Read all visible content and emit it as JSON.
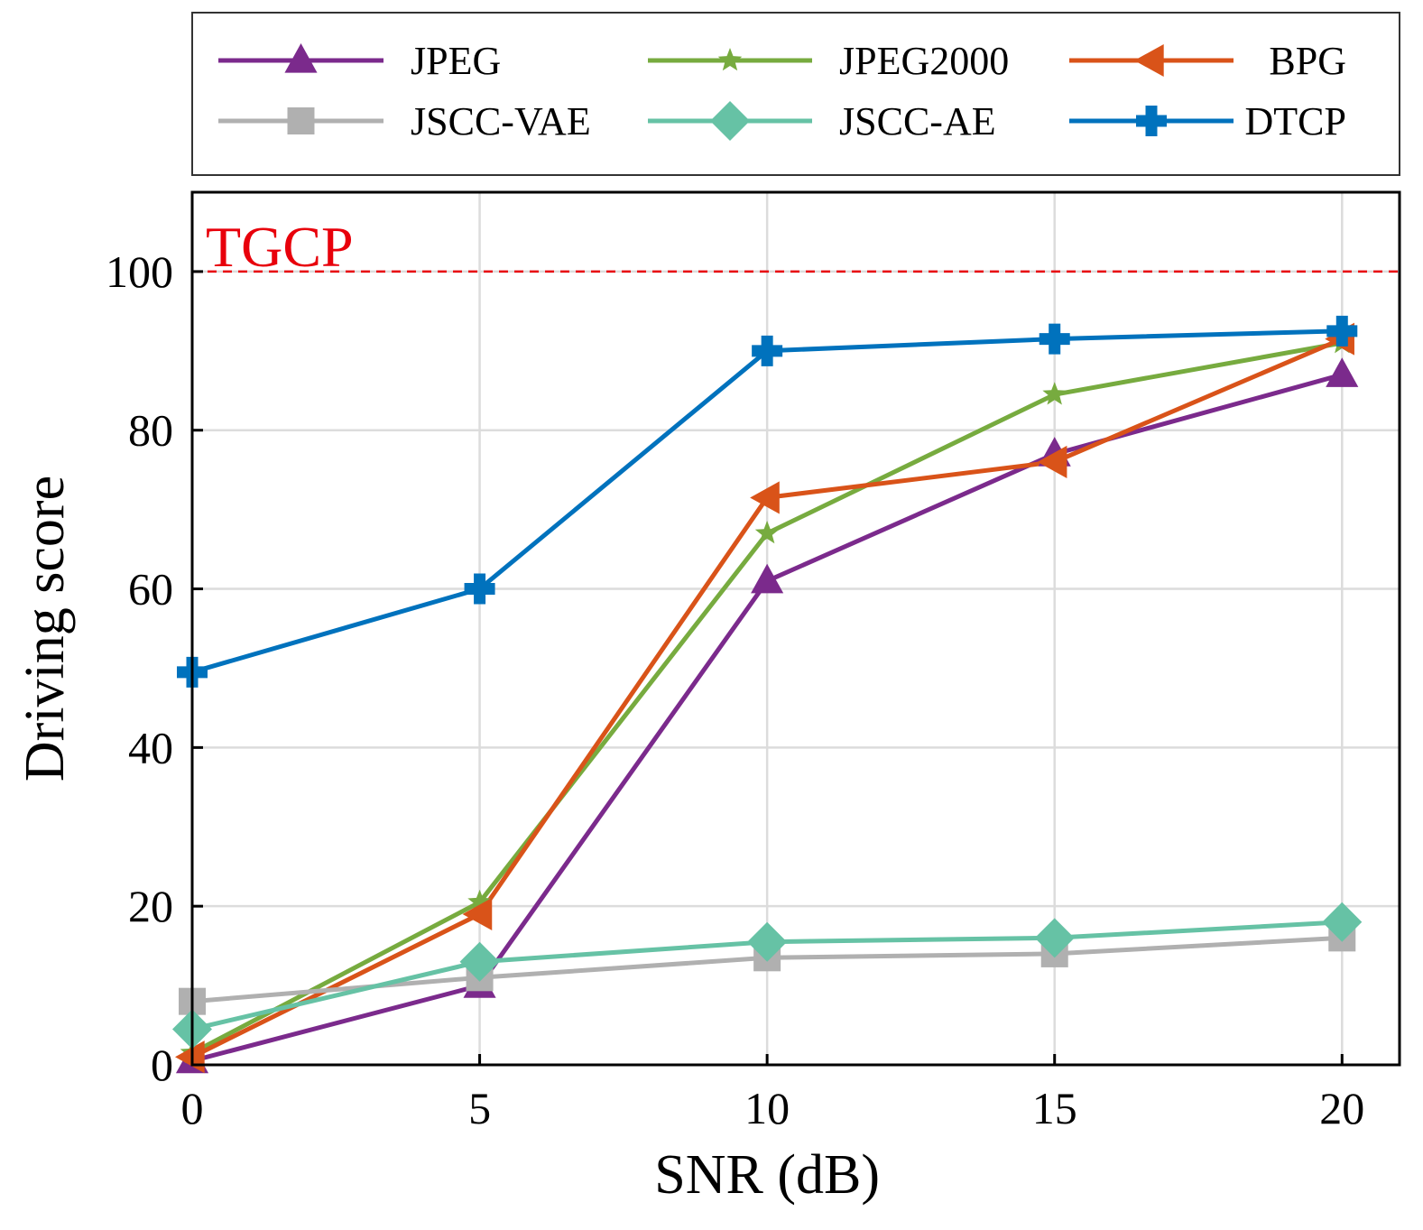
{
  "chart_data": {
    "type": "line",
    "xlabel": "SNR (dB)",
    "ylabel": "Driving score",
    "xlim": [
      0,
      21
    ],
    "ylim": [
      0,
      110
    ],
    "xticks": [
      0,
      5,
      10,
      15,
      20
    ],
    "yticks": [
      0,
      20,
      40,
      60,
      80,
      100
    ],
    "grid": true,
    "legend_position": "top (outside, above plot)",
    "reference_line": {
      "label": "TGCP",
      "y": 100,
      "color": "#e8000b"
    },
    "x": [
      0,
      5,
      10,
      15,
      20
    ],
    "series": [
      {
        "name": "JPEG",
        "marker": "triangle-up",
        "color": "#7b2a8c",
        "values": [
          0.5,
          10,
          61,
          77,
          87
        ]
      },
      {
        "name": "JPEG2000",
        "marker": "star",
        "color": "#77ab3f",
        "values": [
          1.5,
          20.5,
          67,
          84.5,
          91
        ]
      },
      {
        "name": "BPG",
        "marker": "triangle-left",
        "color": "#d95319",
        "values": [
          1,
          19,
          71.5,
          76,
          91.5
        ]
      },
      {
        "name": "JSCC-VAE",
        "marker": "square",
        "color": "#b0b0b0",
        "values": [
          8,
          11,
          13.5,
          14,
          16
        ]
      },
      {
        "name": "JSCC-AE",
        "marker": "diamond",
        "color": "#66c2a5",
        "values": [
          4.5,
          13,
          15.5,
          16,
          18
        ]
      },
      {
        "name": "DTCP",
        "marker": "plus",
        "color": "#0072bd",
        "values": [
          49.5,
          60,
          90,
          91.5,
          92.5
        ]
      }
    ]
  }
}
